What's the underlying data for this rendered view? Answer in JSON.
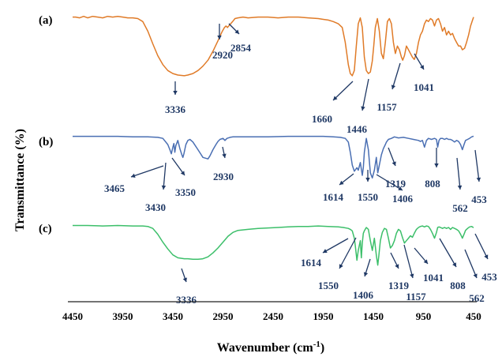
{
  "chart_data": {
    "type": "line",
    "title": "",
    "xlabel": "Wavenumber (cm",
    "xlabel_superscript": "-1",
    "xlabel_close": ")",
    "ylabel": "Transmittance (%)",
    "xlim": [
      4450,
      450
    ],
    "x_reversed": true,
    "x_ticks": [
      "4450",
      "3950",
      "3450",
      "2950",
      "2450",
      "1950",
      "1450",
      "950",
      "450"
    ],
    "y_ticks_shown": false,
    "grid": false,
    "legend": "none",
    "panels": [
      {
        "label": "(a)",
        "color": "#e07b28",
        "series": {
          "x": [
            4450,
            4420,
            4380,
            4340,
            4300,
            4250,
            4200,
            4150,
            4100,
            4050,
            4000,
            3950,
            3900,
            3850,
            3800,
            3750,
            3700,
            3650,
            3600,
            3550,
            3500,
            3450,
            3400,
            3336,
            3300,
            3250,
            3200,
            3150,
            3100,
            3050,
            3000,
            2960,
            2935,
            2920,
            2905,
            2880,
            2854,
            2830,
            2800,
            2750,
            2700,
            2600,
            2500,
            2400,
            2300,
            2200,
            2100,
            2000,
            1950,
            1900,
            1850,
            1800,
            1760,
            1730,
            1700,
            1680,
            1660,
            1640,
            1620,
            1600,
            1580,
            1560,
            1540,
            1520,
            1500,
            1480,
            1460,
            1446,
            1430,
            1410,
            1390,
            1370,
            1350,
            1330,
            1310,
            1290,
            1270,
            1250,
            1230,
            1210,
            1190,
            1170,
            1157,
            1140,
            1120,
            1100,
            1080,
            1060,
            1041,
            1020,
            1000,
            980,
            960,
            940,
            920,
            900,
            880,
            860,
            840,
            820,
            800,
            780,
            760,
            740,
            720,
            700,
            680,
            660,
            640,
            620,
            600,
            580,
            562,
            540,
            520,
            500,
            480,
            460,
            450
          ],
          "y": [
            94,
            94,
            93,
            95,
            93,
            95,
            94,
            93,
            95,
            94,
            95,
            94,
            93,
            93,
            92,
            88,
            75,
            58,
            42,
            30,
            22,
            18,
            16,
            15,
            16,
            18,
            22,
            28,
            36,
            48,
            62,
            74,
            80,
            82,
            80,
            84,
            88,
            92,
            93,
            94,
            93,
            94,
            94,
            93,
            94,
            94,
            93,
            92,
            91,
            90,
            88,
            85,
            80,
            60,
            30,
            18,
            15,
            22,
            55,
            85,
            93,
            80,
            40,
            22,
            18,
            20,
            35,
            55,
            80,
            92,
            75,
            45,
            38,
            60,
            88,
            92,
            85,
            60,
            45,
            55,
            50,
            40,
            36,
            42,
            55,
            50,
            45,
            40,
            37,
            45,
            60,
            70,
            75,
            85,
            90,
            88,
            92,
            90,
            82,
            90,
            92,
            85,
            75,
            80,
            70,
            75,
            70,
            72,
            65,
            60,
            55,
            55,
            50,
            52,
            60,
            70,
            82,
            90,
            94
          ]
        },
        "peak_labels": [
          "3336",
          "2920",
          "2854",
          "1660",
          "1446",
          "1157",
          "1041"
        ]
      },
      {
        "label": "(b)",
        "color": "#4a6fb3",
        "series": {
          "x": [
            4450,
            4300,
            4150,
            4000,
            3850,
            3700,
            3600,
            3550,
            3500,
            3480,
            3465,
            3450,
            3440,
            3430,
            3420,
            3400,
            3380,
            3360,
            3350,
            3340,
            3320,
            3300,
            3280,
            3250,
            3200,
            3150,
            3100,
            3080,
            3050,
            3020,
            3000,
            2980,
            2950,
            2930,
            2910,
            2880,
            2850,
            2800,
            2700,
            2500,
            2300,
            2100,
            1950,
            1850,
            1780,
            1730,
            1700,
            1680,
            1660,
            1640,
            1614,
            1600,
            1580,
            1560,
            1550,
            1540,
            1520,
            1500,
            1480,
            1460,
            1440,
            1420,
            1406,
            1390,
            1370,
            1350,
            1330,
            1319,
            1300,
            1270,
            1240,
            1200,
            1150,
            1100,
            1050,
            1000,
            980,
            960,
            940,
            920,
            900,
            870,
            840,
            820,
            808,
            795,
            780,
            760,
            740,
            720,
            700,
            680,
            660,
            640,
            620,
            600,
            580,
            562,
            545,
            530,
            510,
            490,
            470,
            453,
            450
          ],
          "y": [
            96,
            96,
            96,
            96,
            95,
            95,
            94,
            92,
            80,
            70,
            62,
            75,
            82,
            65,
            78,
            88,
            72,
            60,
            55,
            62,
            80,
            88,
            90,
            85,
            70,
            55,
            52,
            58,
            70,
            80,
            86,
            90,
            92,
            88,
            92,
            94,
            95,
            95,
            95,
            95,
            96,
            96,
            96,
            95,
            94,
            92,
            85,
            65,
            40,
            28,
            35,
            30,
            45,
            20,
            35,
            65,
            92,
            70,
            25,
            15,
            30,
            55,
            25,
            40,
            60,
            72,
            80,
            85,
            90,
            92,
            95,
            93,
            94,
            92,
            90,
            88,
            86,
            88,
            75,
            88,
            92,
            90,
            92,
            90,
            75,
            88,
            92,
            92,
            90,
            92,
            90,
            90,
            88,
            85,
            88,
            86,
            80,
            70,
            80,
            88,
            90,
            92,
            95,
            96,
            96
          ]
        },
        "peak_labels": [
          "3465",
          "3430",
          "3350",
          "2930",
          "1614",
          "1550",
          "1406",
          "1319",
          "808",
          "562",
          "453"
        ]
      },
      {
        "label": "(c)",
        "color": "#3cbf6a",
        "series": {
          "x": [
            4450,
            4300,
            4150,
            4000,
            3850,
            3750,
            3700,
            3650,
            3600,
            3550,
            3500,
            3450,
            3400,
            3336,
            3300,
            3250,
            3200,
            3150,
            3100,
            3050,
            3000,
            2950,
            2900,
            2850,
            2800,
            2700,
            2600,
            2500,
            2400,
            2300,
            2200,
            2100,
            2000,
            1900,
            1800,
            1750,
            1700,
            1680,
            1660,
            1640,
            1630,
            1614,
            1600,
            1580,
            1570,
            1560,
            1550,
            1540,
            1520,
            1500,
            1480,
            1460,
            1440,
            1420,
            1406,
            1395,
            1380,
            1360,
            1340,
            1319,
            1300,
            1280,
            1260,
            1240,
            1220,
            1200,
            1180,
            1157,
            1140,
            1120,
            1100,
            1080,
            1060,
            1041,
            1020,
            1000,
            980,
            960,
            940,
            920,
            900,
            880,
            860,
            840,
            820,
            808,
            795,
            780,
            760,
            740,
            720,
            700,
            680,
            660,
            640,
            620,
            600,
            580,
            562,
            545,
            530,
            510,
            490,
            470,
            453,
            450
          ],
          "y": [
            96,
            96,
            95,
            96,
            95,
            95,
            94,
            90,
            78,
            62,
            48,
            36,
            30,
            28,
            28,
            27,
            27,
            28,
            32,
            40,
            50,
            62,
            74,
            82,
            86,
            88,
            90,
            91,
            92,
            93,
            94,
            94,
            95,
            94,
            93,
            92,
            90,
            88,
            85,
            70,
            55,
            25,
            45,
            65,
            30,
            60,
            80,
            85,
            92,
            88,
            65,
            45,
            70,
            35,
            15,
            35,
            65,
            82,
            90,
            88,
            70,
            50,
            55,
            65,
            80,
            88,
            85,
            70,
            60,
            65,
            70,
            75,
            72,
            80,
            88,
            92,
            94,
            95,
            93,
            95,
            94,
            88,
            80,
            70,
            82,
            92,
            93,
            92,
            90,
            92,
            90,
            92,
            88,
            92,
            90,
            88,
            85,
            78,
            70,
            78,
            86,
            90,
            93,
            94,
            92,
            92
          ]
        },
        "peak_labels": [
          "3336",
          "1614",
          "1550",
          "1406",
          "1319",
          "1157",
          "1041",
          "808",
          "562",
          "453"
        ]
      }
    ]
  }
}
